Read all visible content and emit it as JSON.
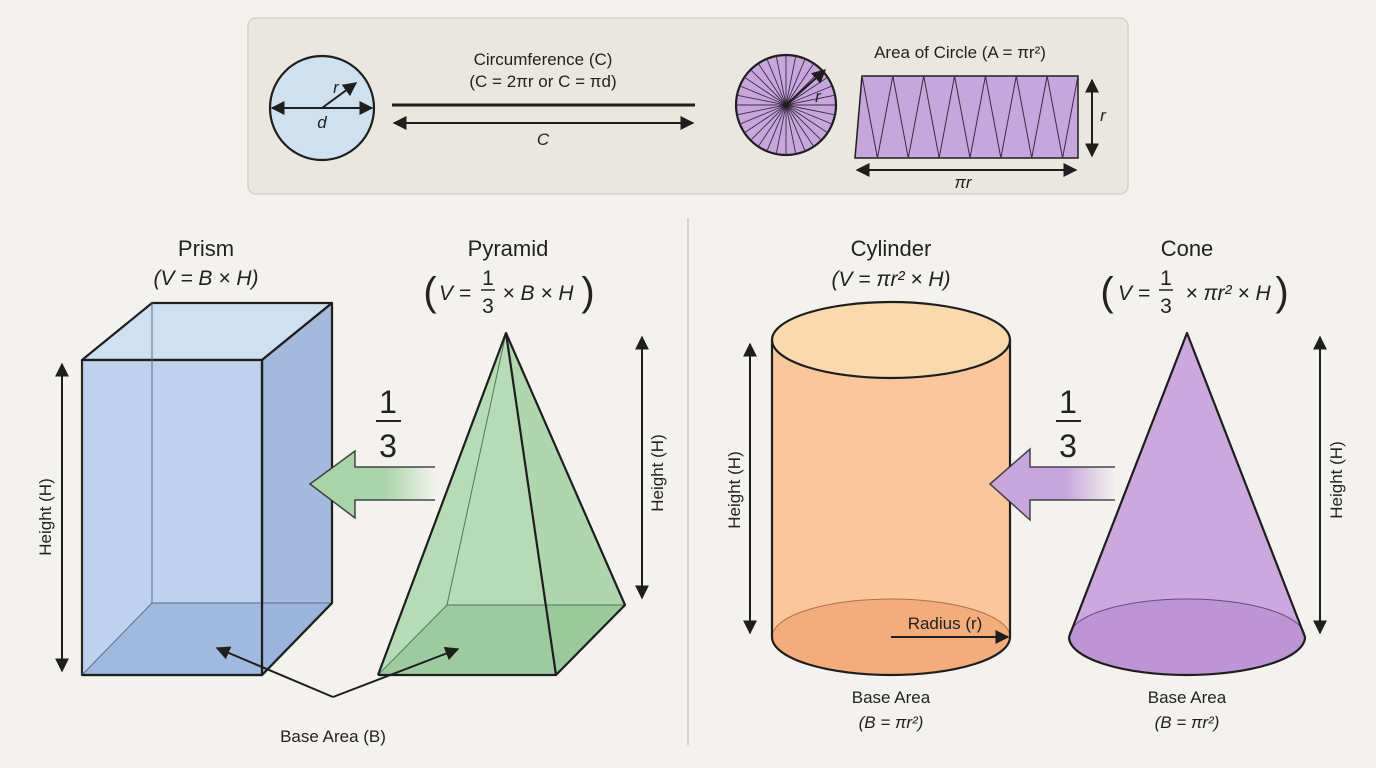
{
  "top_panel": {
    "circumference_title": "Circumference (C)",
    "circumference_formula": "(C = 2πr or C = πd)",
    "radius_label": "r",
    "diameter_label": "d",
    "c_label": "C",
    "area_title": "Area of Circle (A = πr²)",
    "area_radius_label": "r",
    "area_height_label": "r",
    "area_width_label": "πr"
  },
  "prism": {
    "title": "Prism",
    "formula": "(V = B × H)",
    "height_label": "Height (H)",
    "color": "#b9cdea"
  },
  "pyramid": {
    "title": "Pyramid",
    "formula_left": "V =",
    "formula_num": "1",
    "formula_den": "3",
    "formula_right": "× B × H",
    "height_label": "Height (H)",
    "color": "#a9d3a9"
  },
  "left_fraction": {
    "num": "1",
    "den": "3"
  },
  "left_base_label": "Base Area (B)",
  "cylinder": {
    "title": "Cylinder",
    "formula": "(V = πr² × H)",
    "height_label": "Height (H)",
    "radius_label": "Radius (r)",
    "base_label": "Base Area",
    "base_formula": "(B = πr²)",
    "color": "#f9c79b"
  },
  "cone": {
    "title": "Cone",
    "formula_left": "V =",
    "formula_num": "1",
    "formula_den": "3",
    "formula_right": "× πr² × H",
    "height_label": "Height (H)",
    "base_label": "Base Area",
    "base_formula": "(B = πr²)",
    "color": "#cba8de"
  },
  "right_fraction": {
    "num": "1",
    "den": "3"
  }
}
